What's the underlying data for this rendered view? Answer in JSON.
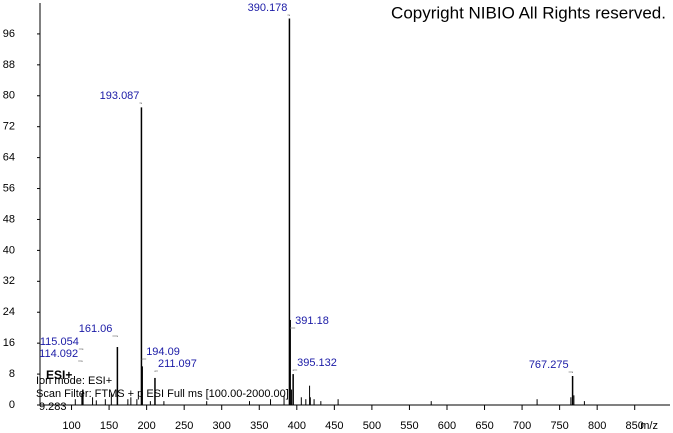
{
  "chart_data": {
    "type": "spectrum",
    "title": "Copyright NIBIO All Rights reserved.",
    "x_label": "m/z",
    "annotations": [
      "Ion mode: ESI+",
      "Scan Filter: FTMS + p ESI Full ms [100.00-2000.00]",
      "9.283",
      "ESI+"
    ],
    "x": [
      114.092,
      115.054,
      161.06,
      193.087,
      194.09,
      211.097,
      390.178,
      391.18,
      395.132,
      767.275
    ],
    "values": [
      3,
      4,
      15,
      77,
      10,
      7,
      100,
      22,
      8,
      7.5
    ],
    "minor": {
      "x": [
        105,
        128,
        133,
        145,
        153,
        175,
        179,
        187,
        205,
        223,
        280,
        337,
        365,
        383,
        393,
        406,
        412,
        417,
        418,
        423,
        432,
        455,
        579,
        720,
        765,
        769,
        783
      ],
      "values": [
        1.5,
        2,
        1.2,
        1.5,
        3,
        1.5,
        2,
        1.5,
        1,
        1,
        1,
        1,
        1.5,
        2.5,
        4,
        2,
        1.5,
        5,
        2,
        1.5,
        1,
        1.5,
        1,
        1.5,
        2,
        2.5,
        1
      ]
    },
    "color": "#000000",
    "label_color": "#1a1aa6",
    "xlim": [
      58,
      897
    ],
    "ylim": [
      0,
      104
    ],
    "xticks": [
      100,
      150,
      200,
      250,
      300,
      350,
      400,
      450,
      500,
      550,
      600,
      650,
      700,
      750,
      800,
      850
    ],
    "yticks": [
      0,
      8,
      16,
      24,
      32,
      40,
      48,
      56,
      64,
      72,
      80,
      88,
      96
    ]
  }
}
